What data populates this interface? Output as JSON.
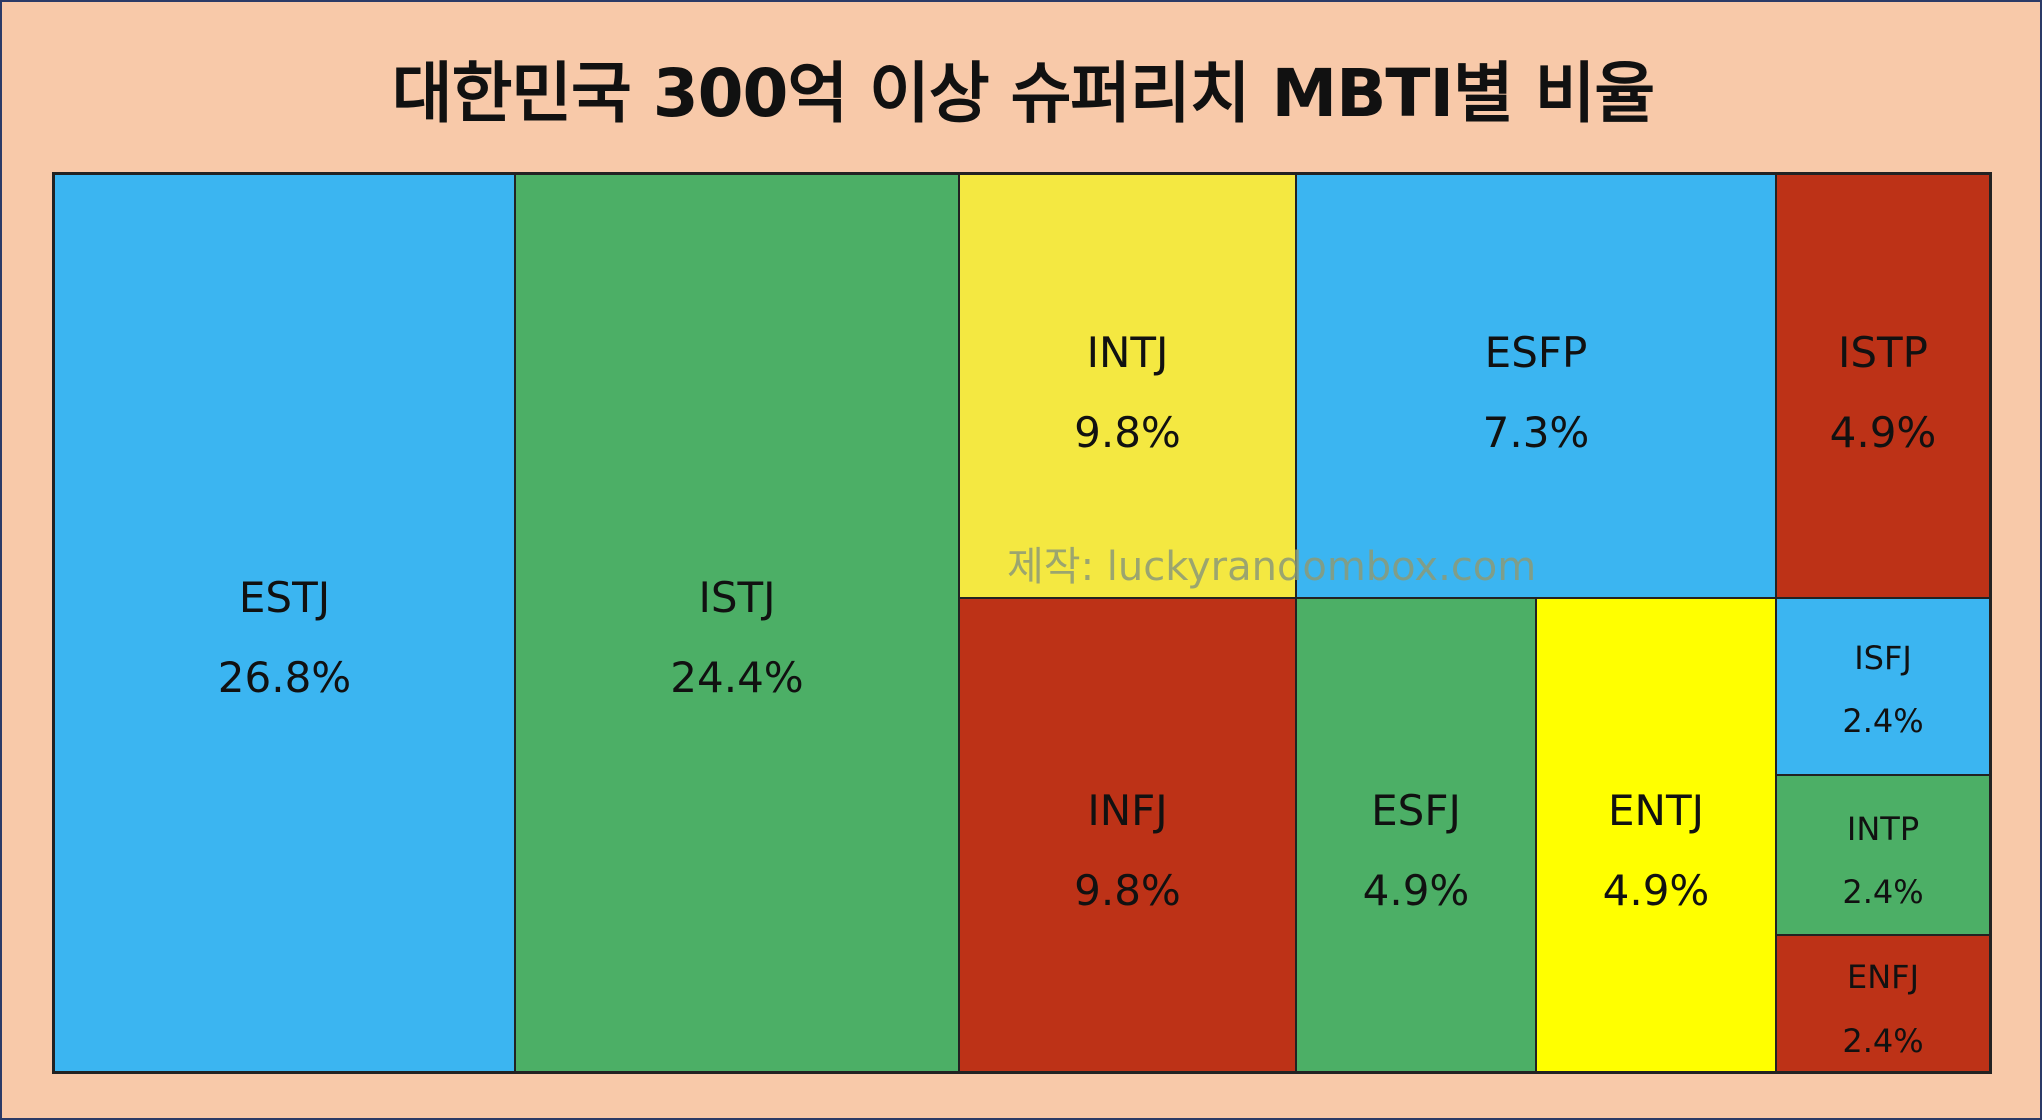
{
  "chart_data": {
    "type": "treemap",
    "title": "대한민국 300억 이상 슈퍼리치 MBTI별 비율",
    "items": [
      {
        "name": "ESTJ",
        "value": 26.8,
        "label": "26.8%",
        "color": "#3bb5f1"
      },
      {
        "name": "ISTJ",
        "value": 24.4,
        "label": "24.4%",
        "color": "#4caf66"
      },
      {
        "name": "INTJ",
        "value": 9.8,
        "label": "9.8%",
        "color": "#f4e841"
      },
      {
        "name": "ESFP",
        "value": 7.3,
        "label": "7.3%",
        "color": "#3bb5f1"
      },
      {
        "name": "ISTP",
        "value": 4.9,
        "label": "4.9%",
        "color": "#bd3217"
      },
      {
        "name": "INFJ",
        "value": 9.8,
        "label": "9.8%",
        "color": "#bd3217"
      },
      {
        "name": "ESFJ",
        "value": 4.9,
        "label": "4.9%",
        "color": "#4caf66"
      },
      {
        "name": "ENTJ",
        "value": 4.9,
        "label": "4.9%",
        "color": "#ffff00"
      },
      {
        "name": "ISFJ",
        "value": 2.4,
        "label": "2.4%",
        "color": "#3bb5f1"
      },
      {
        "name": "INTP",
        "value": 2.4,
        "label": "2.4%",
        "color": "#4caf66"
      },
      {
        "name": "ENFJ",
        "value": 2.4,
        "label": "2.4%",
        "color": "#bd3217"
      }
    ]
  },
  "watermark": "제작: luckyrandombox.com"
}
